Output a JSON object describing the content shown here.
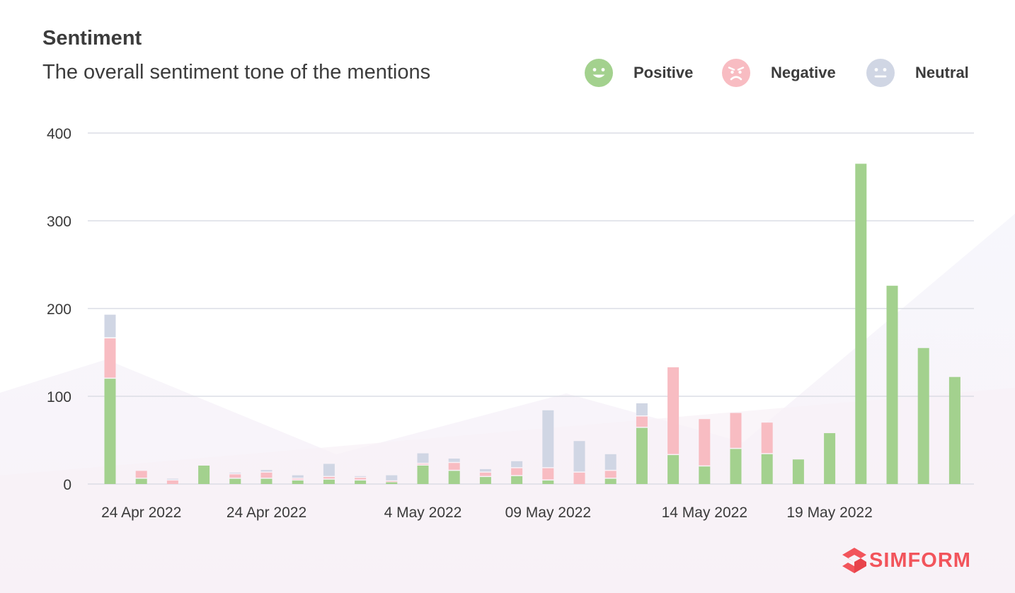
{
  "header": {
    "title": "Sentiment",
    "subtitle": "The overall sentiment tone of the mentions"
  },
  "legend": [
    {
      "label": "Positive",
      "icon": "smile-icon",
      "color": "#a3d18e"
    },
    {
      "label": "Negative",
      "icon": "angry-face-icon",
      "color": "#f8bcc2"
    },
    {
      "label": "Neutral",
      "icon": "neutral-face-icon",
      "color": "#d0d6e4"
    }
  ],
  "brand": {
    "name": "SIMFORM",
    "color": "#f2545b"
  },
  "colors": {
    "positive": "#a3d18e",
    "negative": "#f8bcc2",
    "neutral": "#d0d6e4",
    "grid": "#dcdde5",
    "axis_text": "#3a3a3a"
  },
  "chart_data": {
    "type": "bar",
    "stacked": true,
    "title": "Sentiment",
    "ylim": [
      0,
      400
    ],
    "yticks": [
      0,
      100,
      200,
      300,
      400
    ],
    "x_tick_labels": [
      "24 Apr 2022",
      "24 Apr 2022",
      "4 May 2022",
      "09 May 2022",
      "14 May 2022",
      "19 May 2022"
    ],
    "x_tick_bar_index": [
      1,
      5,
      10,
      14,
      19,
      23
    ],
    "grid": true,
    "legend_position": "top-right",
    "bar_count": 28,
    "series": [
      {
        "name": "Positive",
        "values": [
          120,
          6,
          0,
          21,
          6,
          6,
          4,
          5,
          4,
          2,
          21,
          15,
          8,
          9,
          4,
          0,
          6,
          64,
          33,
          20,
          40,
          34,
          28,
          58,
          365,
          226,
          155,
          122
        ]
      },
      {
        "name": "Negative",
        "values": [
          46,
          9,
          4,
          0,
          5,
          7,
          2,
          3,
          3,
          1,
          2,
          9,
          5,
          9,
          14,
          13,
          9,
          13,
          100,
          54,
          41,
          36,
          0,
          0,
          0,
          0,
          0,
          0
        ]
      },
      {
        "name": "Neutral",
        "values": [
          27,
          0,
          2,
          0,
          2,
          3,
          4,
          15,
          2,
          7,
          12,
          5,
          4,
          8,
          66,
          36,
          19,
          15,
          0,
          0,
          0,
          0,
          0,
          0,
          0,
          0,
          0,
          0
        ]
      }
    ]
  }
}
